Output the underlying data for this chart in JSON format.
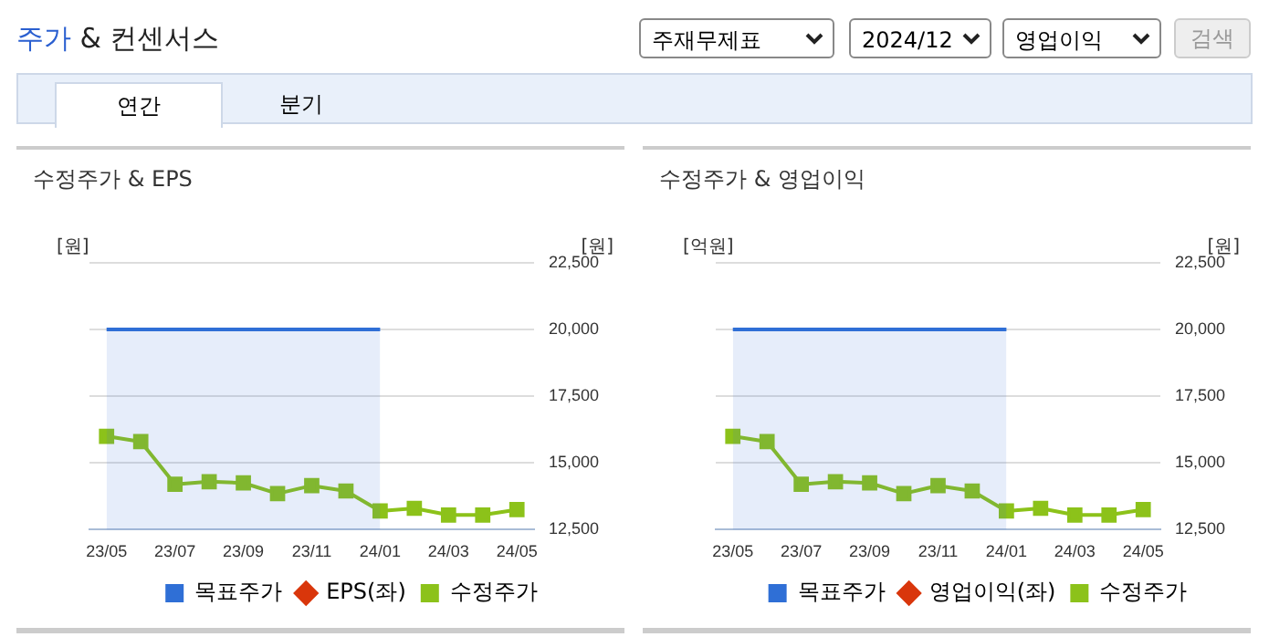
{
  "chart_data": [
    {
      "type": "other",
      "title": "주가 & 컨센서스",
      "annotations": [
        "주재무제표",
        "2024/12",
        "영업이익",
        "검색",
        "연간",
        "분기"
      ]
    },
    {
      "type": "line",
      "title": "수정주가 & EPS",
      "categories": [
        "23/05",
        null,
        "23/07",
        null,
        "23/09",
        null,
        "23/11",
        null,
        "24/01",
        null,
        "24/03",
        null,
        "24/05"
      ],
      "ylabel": "[원]",
      "y2label": "[원]",
      "y2lim": [
        12500,
        22500
      ],
      "y2ticks": [
        {
          "value": 12500,
          "label": "12,500"
        },
        {
          "value": 15000,
          "label": "15,000"
        },
        {
          "value": 17500,
          "label": "17,500"
        },
        {
          "value": 20000,
          "label": "20,000"
        },
        {
          "value": 22500,
          "label": "22,500"
        }
      ],
      "grid": "y",
      "legend": "bottom",
      "series": [
        {
          "name": "목표주가",
          "type": "area",
          "axis": "y2",
          "color": "#2f6fd6",
          "values": [
            20000,
            20000,
            20000,
            20000,
            20000,
            20000,
            20000,
            20000,
            20000,
            null,
            null,
            null,
            null
          ]
        },
        {
          "name": "EPS(좌)",
          "type": "line",
          "axis": "y",
          "color": "#d9360b",
          "marker": "diamond",
          "values": [
            null,
            null,
            null,
            null,
            null,
            null,
            null,
            null,
            null,
            null,
            null,
            null,
            null
          ]
        },
        {
          "name": "수정주가",
          "type": "line",
          "axis": "y2",
          "color": "#8cc21a",
          "marker": "square",
          "values": [
            16000,
            15800,
            14200,
            14300,
            14250,
            13850,
            14150,
            13950,
            13200,
            13300,
            13050,
            13050,
            13250
          ]
        }
      ]
    },
    {
      "type": "line",
      "title": "수정주가 & 영업이익",
      "categories": [
        "23/05",
        null,
        "23/07",
        null,
        "23/09",
        null,
        "23/11",
        null,
        "24/01",
        null,
        "24/03",
        null,
        "24/05"
      ],
      "ylabel": "[억원]",
      "y2label": "[원]",
      "y2lim": [
        12500,
        22500
      ],
      "y2ticks": [
        {
          "value": 12500,
          "label": "12,500"
        },
        {
          "value": 15000,
          "label": "15,000"
        },
        {
          "value": 17500,
          "label": "17,500"
        },
        {
          "value": 20000,
          "label": "20,000"
        },
        {
          "value": 22500,
          "label": "22,500"
        }
      ],
      "grid": "y",
      "legend": "bottom",
      "series": [
        {
          "name": "목표주가",
          "type": "area",
          "axis": "y2",
          "color": "#2f6fd6",
          "values": [
            20000,
            20000,
            20000,
            20000,
            20000,
            20000,
            20000,
            20000,
            20000,
            null,
            null,
            null,
            null
          ]
        },
        {
          "name": "영업이익(좌)",
          "type": "line",
          "axis": "y",
          "color": "#d9360b",
          "marker": "diamond",
          "values": [
            null,
            null,
            null,
            null,
            null,
            null,
            null,
            null,
            null,
            null,
            null,
            null,
            null
          ]
        },
        {
          "name": "수정주가",
          "type": "line",
          "axis": "y2",
          "color": "#8cc21a",
          "marker": "square",
          "values": [
            16000,
            15800,
            14200,
            14300,
            14250,
            13850,
            14150,
            13950,
            13200,
            13300,
            13050,
            13050,
            13250
          ]
        }
      ]
    }
  ]
}
